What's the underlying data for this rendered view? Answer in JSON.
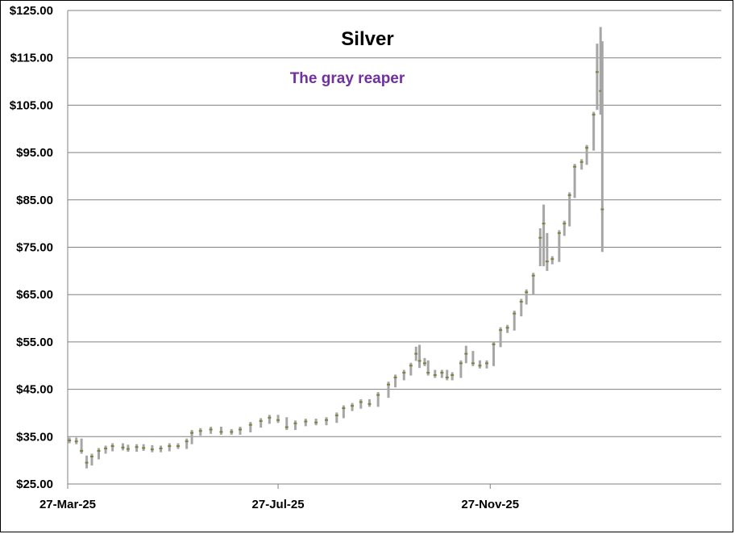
{
  "chart_data": {
    "type": "ohlc",
    "title": "Silver",
    "subtitle": "The gray reaper",
    "xlabel": "",
    "ylabel": "",
    "ylim": [
      25,
      125
    ],
    "yticks": [
      "$25.00",
      "$35.00",
      "$45.00",
      "$55.00",
      "$65.00",
      "$75.00",
      "$85.00",
      "$95.00",
      "$105.00",
      "$115.00",
      "$125.00"
    ],
    "xticks": [
      {
        "label": "27-Mar-25",
        "date": "2025-03-27"
      },
      {
        "label": "27-Jul-25",
        "date": "2025-07-27"
      },
      {
        "label": "27-Nov-25",
        "date": "2025-11-27"
      }
    ],
    "xlim": [
      "2025-03-27",
      "2026-04-10"
    ],
    "grid": "horizontal",
    "colors": {
      "bar": "#a6a6a6",
      "tick": "#7f7f3f",
      "grid": "#808080",
      "subtitle": "#7030a0"
    },
    "points": [
      {
        "date": "2025-03-28",
        "close": 34.2
      },
      {
        "date": "2025-04-01",
        "close": 34.0
      },
      {
        "date": "2025-04-04",
        "close": 32.0
      },
      {
        "date": "2025-04-07",
        "close": 29.5,
        "low": 28.3,
        "high": 31.0
      },
      {
        "date": "2025-04-10",
        "close": 30.8
      },
      {
        "date": "2025-04-14",
        "close": 32.0
      },
      {
        "date": "2025-04-18",
        "close": 32.5
      },
      {
        "date": "2025-04-22",
        "close": 33.0
      },
      {
        "date": "2025-04-28",
        "close": 32.7
      },
      {
        "date": "2025-05-01",
        "close": 32.4
      },
      {
        "date": "2025-05-06",
        "close": 32.8
      },
      {
        "date": "2025-05-10",
        "close": 32.6
      },
      {
        "date": "2025-05-15",
        "close": 32.3
      },
      {
        "date": "2025-05-20",
        "close": 32.5
      },
      {
        "date": "2025-05-25",
        "close": 33.0
      },
      {
        "date": "2025-05-30",
        "close": 33.0
      },
      {
        "date": "2025-06-04",
        "close": 34.0
      },
      {
        "date": "2025-06-07",
        "close": 35.8
      },
      {
        "date": "2025-06-12",
        "close": 36.2
      },
      {
        "date": "2025-06-18",
        "close": 36.5
      },
      {
        "date": "2025-06-24",
        "close": 36.0
      },
      {
        "date": "2025-06-30",
        "close": 36.0
      },
      {
        "date": "2025-07-05",
        "close": 36.5
      },
      {
        "date": "2025-07-11",
        "close": 37.5
      },
      {
        "date": "2025-07-17",
        "close": 38.3
      },
      {
        "date": "2025-07-22",
        "close": 39.0
      },
      {
        "date": "2025-07-27",
        "close": 38.5
      },
      {
        "date": "2025-08-01",
        "close": 37.0
      },
      {
        "date": "2025-08-06",
        "close": 37.8
      },
      {
        "date": "2025-08-12",
        "close": 38.2
      },
      {
        "date": "2025-08-18",
        "close": 38.0
      },
      {
        "date": "2025-08-24",
        "close": 38.5
      },
      {
        "date": "2025-08-30",
        "close": 39.5
      },
      {
        "date": "2025-09-03",
        "close": 41.0
      },
      {
        "date": "2025-09-08",
        "close": 41.5
      },
      {
        "date": "2025-09-13",
        "close": 42.3
      },
      {
        "date": "2025-09-18",
        "close": 41.9
      },
      {
        "date": "2025-09-23",
        "close": 43.8
      },
      {
        "date": "2025-09-29",
        "close": 46.0
      },
      {
        "date": "2025-10-03",
        "close": 47.5
      },
      {
        "date": "2025-10-08",
        "close": 48.5
      },
      {
        "date": "2025-10-12",
        "close": 50.0
      },
      {
        "date": "2025-10-15",
        "close": 52.5,
        "low": 51.0,
        "high": 54.0
      },
      {
        "date": "2025-10-17",
        "close": 51.0,
        "low": 49.5,
        "high": 54.4
      },
      {
        "date": "2025-10-20",
        "close": 50.5
      },
      {
        "date": "2025-10-22",
        "close": 48.5
      },
      {
        "date": "2025-10-26",
        "close": 48.0
      },
      {
        "date": "2025-10-30",
        "close": 48.5
      },
      {
        "date": "2025-11-02",
        "close": 47.5
      },
      {
        "date": "2025-11-05",
        "close": 48.0
      },
      {
        "date": "2025-11-10",
        "close": 50.5
      },
      {
        "date": "2025-11-13",
        "close": 52.5,
        "low": 50.5,
        "high": 54.2
      },
      {
        "date": "2025-11-17",
        "close": 50.5
      },
      {
        "date": "2025-11-21",
        "close": 50.0
      },
      {
        "date": "2025-11-25",
        "close": 50.5
      },
      {
        "date": "2025-11-29",
        "close": 54.5
      },
      {
        "date": "2025-12-03",
        "close": 57.5
      },
      {
        "date": "2025-12-07",
        "close": 58.0
      },
      {
        "date": "2025-12-11",
        "close": 61.0
      },
      {
        "date": "2025-12-15",
        "close": 63.5
      },
      {
        "date": "2025-12-18",
        "close": 65.5
      },
      {
        "date": "2025-12-22",
        "close": 69.0
      },
      {
        "date": "2025-12-26",
        "close": 77.0,
        "low": 71.0,
        "high": 79.0
      },
      {
        "date": "2025-12-28",
        "close": 80.0,
        "low": 71.0,
        "high": 84.0
      },
      {
        "date": "2025-12-30",
        "close": 72.0,
        "low": 70.0,
        "high": 78.0
      },
      {
        "date": "2026-01-02",
        "close": 72.5
      },
      {
        "date": "2026-01-06",
        "close": 78.0
      },
      {
        "date": "2026-01-09",
        "close": 80.0
      },
      {
        "date": "2026-01-12",
        "close": 86.0
      },
      {
        "date": "2026-01-15",
        "close": 92.0
      },
      {
        "date": "2026-01-19",
        "close": 93.0
      },
      {
        "date": "2026-01-22",
        "close": 96.0
      },
      {
        "date": "2026-01-26",
        "close": 103.0
      },
      {
        "date": "2026-01-28",
        "close": 112.0,
        "low": 104.0,
        "high": 118.0
      },
      {
        "date": "2026-01-30",
        "close": 108.0,
        "low": 103.0,
        "high": 121.5
      },
      {
        "date": "2026-01-31",
        "close": 83.0,
        "low": 74.0,
        "high": 118.5
      }
    ]
  }
}
